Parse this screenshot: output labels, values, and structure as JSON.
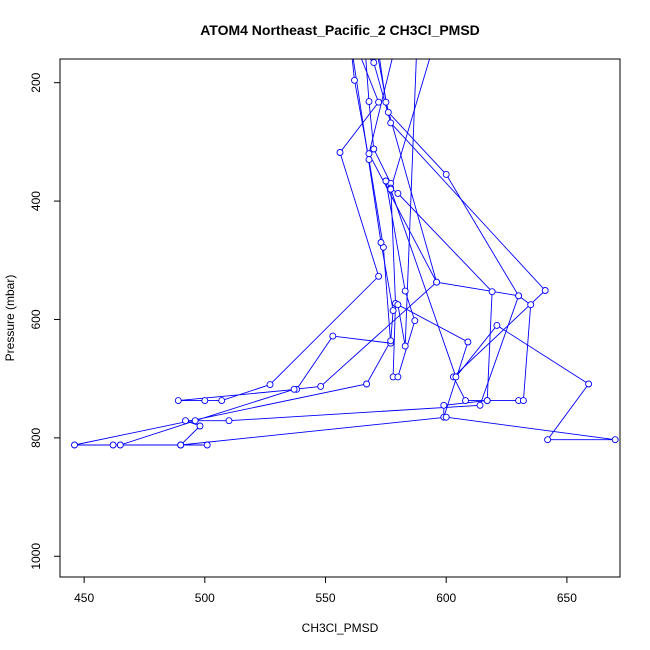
{
  "chart_data": {
    "type": "line",
    "title": "ATOM4 Northeast_Pacific_2 CH3Cl_PMSD",
    "xlabel": "CH3Cl_PMSD",
    "ylabel": "Pressure (mbar)",
    "xlim": [
      440,
      672
    ],
    "ylim": [
      1035,
      160
    ],
    "y_reversed": true,
    "grid": false,
    "xticks": [
      450,
      500,
      550,
      600,
      650
    ],
    "yticks": [
      200,
      400,
      600,
      800,
      1000
    ],
    "line_color": "#0000ff",
    "series": [
      {
        "values": [
          {
            "x": 560,
            "y": 120
          },
          {
            "x": 562,
            "y": 196
          },
          {
            "x": 568,
            "y": 330
          },
          {
            "x": 574,
            "y": 478
          },
          {
            "x": 577,
            "y": 640
          },
          {
            "x": 553,
            "y": 628
          },
          {
            "x": 538,
            "y": 718
          },
          {
            "x": 489,
            "y": 737
          },
          {
            "x": 500,
            "y": 737
          },
          {
            "x": 507,
            "y": 737
          },
          {
            "x": 527,
            "y": 710
          },
          {
            "x": 572,
            "y": 527
          },
          {
            "x": 556,
            "y": 318
          },
          {
            "x": 572,
            "y": 233
          },
          {
            "x": 563,
            "y": 140
          }
        ]
      },
      {
        "values": [
          {
            "x": 566,
            "y": 120
          },
          {
            "x": 568,
            "y": 232
          },
          {
            "x": 570,
            "y": 312
          },
          {
            "x": 577,
            "y": 370
          },
          {
            "x": 579,
            "y": 573
          },
          {
            "x": 578,
            "y": 697
          },
          {
            "x": 580,
            "y": 697
          },
          {
            "x": 587,
            "y": 602
          },
          {
            "x": 583,
            "y": 552
          },
          {
            "x": 575,
            "y": 366
          },
          {
            "x": 577,
            "y": 378
          },
          {
            "x": 580,
            "y": 387
          },
          {
            "x": 619,
            "y": 553
          },
          {
            "x": 617,
            "y": 737
          },
          {
            "x": 608,
            "y": 737
          },
          {
            "x": 603,
            "y": 697
          },
          {
            "x": 641,
            "y": 551
          },
          {
            "x": 577,
            "y": 268
          },
          {
            "x": 570,
            "y": 166
          },
          {
            "x": 558,
            "y": 120
          }
        ]
      },
      {
        "values": [
          {
            "x": 571,
            "y": 120
          },
          {
            "x": 575,
            "y": 233
          },
          {
            "x": 596,
            "y": 537
          },
          {
            "x": 548,
            "y": 713
          },
          {
            "x": 537,
            "y": 718
          },
          {
            "x": 496,
            "y": 771
          },
          {
            "x": 465,
            "y": 812
          },
          {
            "x": 490,
            "y": 812
          },
          {
            "x": 501,
            "y": 812
          },
          {
            "x": 462,
            "y": 812
          },
          {
            "x": 446,
            "y": 812
          },
          {
            "x": 567,
            "y": 709
          },
          {
            "x": 577,
            "y": 636
          },
          {
            "x": 578,
            "y": 585
          },
          {
            "x": 573,
            "y": 470
          },
          {
            "x": 560,
            "y": 120
          }
        ]
      },
      {
        "values": [
          {
            "x": 588,
            "y": 120
          },
          {
            "x": 583,
            "y": 645
          },
          {
            "x": 580,
            "y": 575
          },
          {
            "x": 609,
            "y": 638
          },
          {
            "x": 599,
            "y": 765
          },
          {
            "x": 599,
            "y": 745
          },
          {
            "x": 617,
            "y": 737
          },
          {
            "x": 630,
            "y": 737
          },
          {
            "x": 632,
            "y": 737
          },
          {
            "x": 635,
            "y": 575
          },
          {
            "x": 630,
            "y": 560
          },
          {
            "x": 596,
            "y": 537
          },
          {
            "x": 568,
            "y": 320
          },
          {
            "x": 580,
            "y": 120
          }
        ]
      },
      {
        "values": [
          {
            "x": 570,
            "y": 120
          },
          {
            "x": 576,
            "y": 250
          },
          {
            "x": 600,
            "y": 355
          },
          {
            "x": 630,
            "y": 560
          },
          {
            "x": 614,
            "y": 745
          },
          {
            "x": 510,
            "y": 771
          },
          {
            "x": 492,
            "y": 771
          },
          {
            "x": 498,
            "y": 780
          },
          {
            "x": 490,
            "y": 812
          },
          {
            "x": 600,
            "y": 765
          },
          {
            "x": 670,
            "y": 803
          },
          {
            "x": 642,
            "y": 803
          },
          {
            "x": 659,
            "y": 709
          },
          {
            "x": 621,
            "y": 610
          },
          {
            "x": 604,
            "y": 697
          },
          {
            "x": 577,
            "y": 380
          },
          {
            "x": 596,
            "y": 120
          }
        ]
      }
    ]
  }
}
